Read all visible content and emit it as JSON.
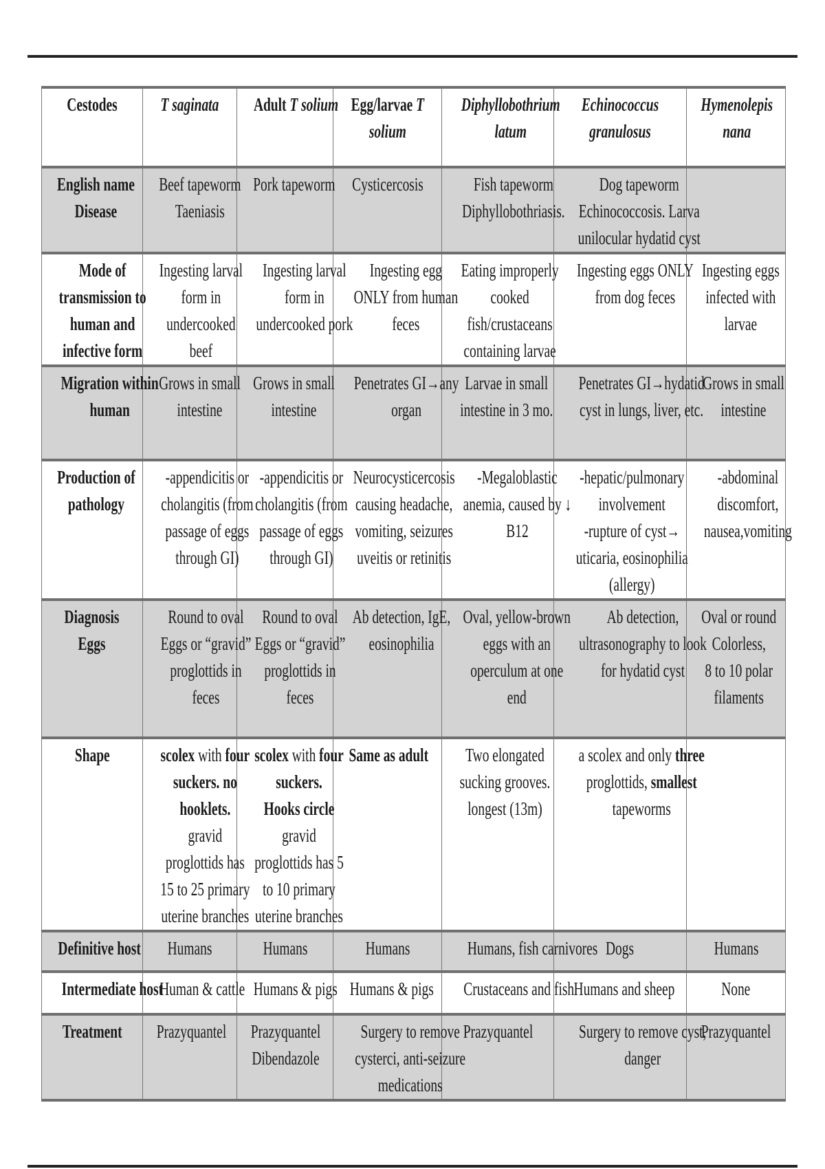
{
  "columns": [
    {
      "lines": [
        "Cestodes"
      ],
      "italic": false
    },
    {
      "lines": [
        "T saginata"
      ],
      "italic": true
    },
    {
      "lines": [
        [
          [
            "Adult ",
            false,
            false
          ],
          [
            "T solium",
            false,
            true
          ]
        ]
      ],
      "italic": false
    },
    {
      "lines": [
        [
          [
            "Egg/larvae ",
            false,
            false
          ],
          [
            "T",
            false,
            true
          ]
        ],
        [
          [
            "solium",
            false,
            true
          ]
        ]
      ],
      "italic": false
    },
    {
      "lines": [
        "Diphyllobothrium",
        "latum"
      ],
      "italic": true
    },
    {
      "lines": [
        "Echinococcus",
        "granulosus"
      ],
      "italic": true
    },
    {
      "lines": [
        "Hymenolepis",
        "nana"
      ],
      "italic": true
    }
  ],
  "rows": [
    {
      "label": [
        "English name",
        "Disease"
      ],
      "shade": true,
      "cells": [
        [
          "Beef tapeworm",
          "Taeniasis"
        ],
        [
          "Pork tapeworm"
        ],
        [
          "Cysticercosis"
        ],
        [
          "Fish tapeworm",
          "Diphyllobothriasis."
        ],
        [
          "Dog tapeworm",
          "Echinococcosis. Larva",
          "unilocular hydatid cyst"
        ],
        []
      ]
    },
    {
      "label": [
        "Mode of",
        "transmission to",
        "human and",
        "infective form"
      ],
      "shade": false,
      "cells": [
        [
          "Ingesting larval",
          "form in",
          "undercooked",
          "beef"
        ],
        [
          "Ingesting larval",
          "form in",
          "undercooked pork"
        ],
        [
          "Ingesting egg",
          "ONLY from human",
          "feces"
        ],
        [
          "Eating improperly",
          "cooked",
          "fish/crustaceans",
          "containing larvae"
        ],
        [
          "Ingesting eggs ONLY",
          "from dog feces"
        ],
        [
          "Ingesting eggs",
          "infected with",
          "larvae"
        ]
      ]
    },
    {
      "label": [
        "Migration within",
        "human"
      ],
      "shade": true,
      "cells": [
        [
          "Grows in small",
          "intestine"
        ],
        [
          "Grows in small",
          "intestine"
        ],
        [
          "Penetrates GI→any",
          "organ"
        ],
        [
          "Larvae in small",
          "intestine in 3 mo."
        ],
        [
          "Penetrates GI→hydatid",
          "cyst in lungs, liver, etc."
        ],
        [
          "Grows in small",
          "intestine"
        ]
      ]
    },
    {
      "label": [
        "Production of",
        "pathology"
      ],
      "shade": false,
      "cells": [
        [
          "-appendicitis or",
          "cholangitis (from",
          "passage of eggs",
          "through GI)"
        ],
        [
          "-appendicitis or",
          "cholangitis (from",
          "passage of eggs",
          "through GI)"
        ],
        [
          "Neurocysticercosis",
          "causing headache,",
          "vomiting, seizures",
          "uveitis or retinitis"
        ],
        [
          "-Megaloblastic",
          "anemia, caused by ↓",
          "B12"
        ],
        [
          "-hepatic/pulmonary",
          "involvement",
          "-rupture of cyst→",
          "uticaria, eosinophilia",
          "(allergy)"
        ],
        [
          "-abdominal",
          "discomfort,",
          "nausea,vomiting"
        ]
      ]
    },
    {
      "label": [
        "Diagnosis",
        "Eggs"
      ],
      "shade": true,
      "cells": [
        [
          "Round to oval",
          "Eggs or “gravid”",
          "proglottids in",
          "feces"
        ],
        [
          "Round to oval",
          "Eggs or “gravid”",
          "proglottids in",
          "feces"
        ],
        [
          "Ab detection, IgE,",
          "eosinophilia"
        ],
        [
          "Oval, yellow-brown",
          "eggs with an",
          "operculum at one",
          "end"
        ],
        [
          "Ab detection,",
          "ultrasonography to look",
          "for hydatid cyst"
        ],
        [
          "Oval or round",
          "Colorless,",
          "8 to 10 polar",
          "filaments"
        ]
      ]
    },
    {
      "label": [
        "Shape"
      ],
      "shade": false,
      "cells": [
        [
          [
            [
              "scolex",
              true,
              false
            ],
            [
              " with ",
              false,
              false
            ],
            [
              "four",
              true,
              false
            ]
          ],
          [
            [
              "suckers. no",
              true,
              false
            ]
          ],
          [
            [
              "hooklets.",
              true,
              false
            ]
          ],
          "gravid",
          "proglottids has",
          "15 to 25 primary",
          "uterine branches"
        ],
        [
          [
            [
              "scolex",
              true,
              false
            ],
            [
              " with ",
              false,
              false
            ],
            [
              "four",
              true,
              false
            ]
          ],
          [
            [
              "suckers.",
              true,
              false
            ]
          ],
          [
            [
              "Hooks circle",
              true,
              false
            ]
          ],
          "gravid",
          "proglottids has 5",
          "to 10 primary",
          "uterine branches"
        ],
        [
          [
            [
              "Same as adult",
              true,
              false
            ]
          ]
        ],
        [
          "Two elongated",
          "sucking grooves.",
          "longest (13m)"
        ],
        [
          [
            [
              "a scolex and only ",
              false,
              false
            ],
            [
              "three",
              true,
              false
            ]
          ],
          [
            [
              "proglottids, ",
              false,
              false
            ],
            [
              "smallest",
              true,
              false
            ]
          ],
          "tapeworms"
        ],
        []
      ]
    },
    {
      "label": [
        "Definitive host"
      ],
      "shade": true,
      "cells": [
        [
          "Humans"
        ],
        [
          "Humans"
        ],
        [
          "Humans"
        ],
        [
          "Humans, fish carnivores"
        ],
        [
          "Dogs"
        ],
        [
          "Humans"
        ]
      ]
    },
    {
      "label": [
        "Intermediate host"
      ],
      "shade": false,
      "cells": [
        [
          "Human & cattle"
        ],
        [
          "Humans & pigs"
        ],
        [
          "Humans & pigs"
        ],
        [
          "Crustaceans and fish"
        ],
        [
          "Humans and sheep"
        ],
        [
          "None"
        ]
      ]
    },
    {
      "label": [
        "Treatment"
      ],
      "shade": true,
      "cells": [
        [
          "Prazyquantel"
        ],
        [
          "Prazyquantel",
          "Dibendazole"
        ],
        [
          "Surgery to remove",
          "cysterci, anti-seizure",
          "medications"
        ],
        [
          "Prazyquantel"
        ],
        [
          "Surgery to remove cyst,",
          "danger"
        ],
        [
          "Prazyquantel"
        ]
      ]
    }
  ]
}
